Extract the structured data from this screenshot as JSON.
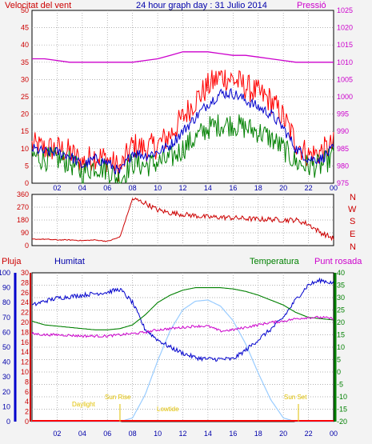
{
  "header": {
    "wind_label": "Velocitat del vent",
    "title": "24 hour graph day : 31 Julio 2014",
    "pressure_label": "Pressió"
  },
  "direction_axis": [
    "N",
    "W",
    "S",
    "E",
    "N"
  ],
  "bottom_labels": {
    "rain": "Pluja",
    "humidity": "Humitat",
    "temperature": "Temperatura",
    "dewpoint": "Punt rosada"
  },
  "annotations": {
    "daylight": "Daylight",
    "sun_rise": "Sun Rise",
    "sun_set": "Sun Set",
    "low_tide": "Lowtide"
  },
  "colors": {
    "wind_gust": "#ff0000",
    "wind_avg": "#0000cc",
    "wind_low": "#008000",
    "pressure": "#cc00cc",
    "direction": "#cc0000",
    "humidity": "#0000cc",
    "temperature": "#008000",
    "dewpoint": "#cc00cc",
    "solar": "#99ccff",
    "rain": "#ff0000"
  },
  "chart_data": [
    {
      "type": "line",
      "title": "24 hour graph day : 31 Julio 2014",
      "x_ticks": [
        "02",
        "04",
        "06",
        "08",
        "10",
        "12",
        "14",
        "16",
        "18",
        "20",
        "22",
        "00"
      ],
      "y_left": {
        "label": "Velocitat del vent",
        "ticks": [
          0,
          5,
          10,
          15,
          20,
          25,
          30,
          35,
          40,
          45,
          50
        ],
        "ylim": [
          0,
          50
        ]
      },
      "y_right": {
        "label": "Pressió",
        "ticks": [
          975,
          980,
          985,
          990,
          995,
          1000,
          1005,
          1010,
          1015,
          1020,
          1025
        ],
        "ylim": [
          975,
          1025
        ]
      },
      "x": [
        0,
        1,
        2,
        3,
        4,
        5,
        6,
        7,
        8,
        9,
        10,
        11,
        12,
        13,
        14,
        15,
        16,
        17,
        18,
        19,
        20,
        21,
        22,
        23,
        24
      ],
      "series": [
        {
          "values": [
            11,
            10,
            10,
            9,
            6,
            8,
            7,
            4,
            11,
            10,
            11,
            14,
            19,
            24,
            28,
            31,
            30,
            28,
            26,
            24,
            19,
            12,
            8,
            9,
            11
          ]
        },
        {
          "values": [
            10,
            9,
            9,
            8,
            5,
            7,
            6,
            3,
            9,
            8,
            9,
            11,
            15,
            19,
            23,
            26,
            26,
            24,
            22,
            20,
            16,
            10,
            7,
            7,
            10
          ]
        },
        {
          "values": [
            8,
            7,
            7,
            6,
            3,
            5,
            4,
            1,
            6,
            5,
            6,
            7,
            10,
            13,
            16,
            17,
            17,
            16,
            15,
            13,
            10,
            6,
            5,
            5,
            8
          ]
        },
        {
          "axis": "right",
          "values": [
            1011,
            1011,
            1010.5,
            1010,
            1010,
            1010,
            1010,
            1010,
            1010,
            1010.5,
            1011,
            1012,
            1013,
            1013,
            1013,
            1012.5,
            1012,
            1012,
            1011.5,
            1011,
            1010.5,
            1010,
            1010,
            1010,
            1010
          ]
        }
      ]
    },
    {
      "type": "line",
      "x_ticks": [
        "02",
        "04",
        "06",
        "08",
        "10",
        "12",
        "14",
        "16",
        "18",
        "20",
        "22",
        "00"
      ],
      "y_left": {
        "ticks": [
          0,
          90,
          180,
          270,
          360
        ],
        "ylim": [
          0,
          360
        ]
      },
      "x": [
        0,
        1,
        2,
        3,
        4,
        5,
        6,
        7,
        8,
        9,
        10,
        11,
        12,
        13,
        14,
        15,
        16,
        17,
        18,
        19,
        20,
        21,
        22,
        23,
        24
      ],
      "series": [
        {
          "values": [
            45,
            45,
            40,
            40,
            35,
            40,
            30,
            60,
            330,
            300,
            250,
            230,
            220,
            210,
            200,
            200,
            195,
            190,
            185,
            185,
            180,
            180,
            150,
            90,
            50
          ]
        }
      ]
    },
    {
      "type": "line",
      "x_ticks": [
        "02",
        "04",
        "06",
        "08",
        "10",
        "12",
        "14",
        "16",
        "18",
        "20",
        "22",
        "00"
      ],
      "y_left_rain": {
        "label": "Pluja",
        "ticks": [
          0,
          2,
          4,
          6,
          8,
          10,
          12,
          14,
          16,
          18,
          20,
          22,
          24,
          26,
          28,
          30
        ],
        "ylim": [
          0,
          30
        ]
      },
      "y_left_humidity": {
        "label": "Humitat",
        "ticks": [
          0,
          10,
          20,
          30,
          40,
          50,
          60,
          70,
          80,
          90,
          100
        ],
        "ylim": [
          0,
          100
        ]
      },
      "y_right": {
        "label": "Temperatura",
        "ticks": [
          -20,
          -15,
          -10,
          -5,
          0,
          5,
          10,
          15,
          20,
          25,
          30,
          35,
          40
        ],
        "ylim": [
          -20,
          40
        ]
      },
      "x": [
        0,
        1,
        2,
        3,
        4,
        5,
        6,
        7,
        8,
        9,
        10,
        11,
        12,
        13,
        14,
        15,
        16,
        17,
        18,
        19,
        20,
        21,
        22,
        23,
        24
      ],
      "series": [
        {
          "name": "Humitat",
          "axis": "humidity",
          "values": [
            78,
            81,
            83,
            84,
            85,
            86,
            87,
            89,
            80,
            62,
            55,
            50,
            46,
            43,
            42,
            42,
            42,
            48,
            55,
            62,
            70,
            82,
            92,
            95,
            93
          ]
        },
        {
          "name": "Temperatura",
          "axis": "right",
          "values": [
            20.5,
            19,
            18.5,
            18,
            17.5,
            17,
            17,
            17.5,
            19,
            23,
            28,
            31,
            33,
            34,
            34,
            34,
            33.5,
            32.5,
            31,
            29,
            27,
            24,
            22,
            21.5,
            21
          ]
        },
        {
          "name": "Punt rosada",
          "axis": "right",
          "values": [
            15.5,
            15,
            15,
            14.8,
            14.5,
            14.5,
            14.5,
            15,
            15.5,
            16,
            17,
            17.5,
            18,
            18.5,
            18.5,
            16.5,
            17,
            18,
            19,
            20,
            20.5,
            21.5,
            22,
            22,
            21.5
          ]
        },
        {
          "axis": "solar_relative",
          "values": [
            0,
            0,
            0,
            0,
            0,
            0,
            0,
            0,
            0.03,
            0.22,
            0.5,
            0.75,
            0.92,
            0.99,
            1.0,
            0.95,
            0.83,
            0.64,
            0.4,
            0.18,
            0.03,
            0,
            0,
            0,
            0
          ]
        },
        {
          "name": "Pluja",
          "axis": "rain",
          "values": [
            0,
            0,
            0,
            0,
            0,
            0,
            0,
            0,
            0,
            0,
            0,
            0,
            0,
            0,
            0,
            0,
            0,
            0,
            0,
            0,
            0,
            0,
            0,
            0,
            0
          ]
        }
      ]
    }
  ]
}
